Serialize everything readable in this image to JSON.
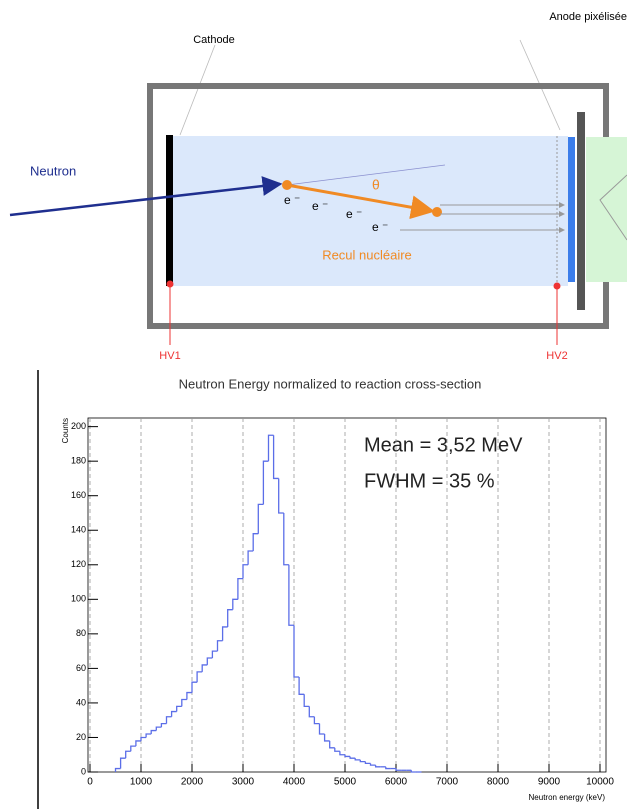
{
  "diagram": {
    "anode_label": "Anode pixélisée",
    "cathode_label": "Cathode",
    "neutron_label": "Neutron",
    "angle_label": "θ",
    "electron_labels": [
      "e ⁻",
      "e ⁻",
      "e ⁻",
      "e ⁻"
    ],
    "recoil_label": "Recul nucléaire",
    "hv1_label": "HV1",
    "hv2_label": "HV2"
  },
  "chart_data": {
    "type": "histogram",
    "title": "Neutron Energy normalized to reaction cross-section",
    "x_label": "Neutron energy (keV)",
    "y_label": "Counts",
    "annotations": [
      "Mean = 3,52 MeV",
      "FWHM = 35 %"
    ],
    "color": "#5b6ee8",
    "grid": true,
    "xlim": [
      0,
      10000
    ],
    "ylim": [
      0,
      205
    ],
    "xticks": [
      0,
      1000,
      2000,
      3000,
      4000,
      5000,
      6000,
      7000,
      8000,
      9000,
      10000
    ],
    "yticks": [
      0,
      20,
      40,
      60,
      80,
      100,
      120,
      140,
      160,
      180,
      200
    ],
    "bins": [
      500,
      600,
      700,
      800,
      900,
      1000,
      1100,
      1200,
      1300,
      1400,
      1500,
      1600,
      1700,
      1800,
      1900,
      2000,
      2100,
      2200,
      2300,
      2400,
      2500,
      2600,
      2700,
      2800,
      2900,
      3000,
      3100,
      3200,
      3300,
      3400,
      3500,
      3600,
      3700,
      3800,
      3900,
      4000,
      4100,
      4200,
      4300,
      4400,
      4500,
      4600,
      4700,
      4800,
      4900,
      5000,
      5100,
      5200,
      5300,
      5400,
      5500,
      5600,
      5700,
      5800,
      5900,
      6000,
      6100,
      6200,
      6300,
      6400,
      6500
    ],
    "values": [
      2,
      8,
      12,
      15,
      18,
      20,
      22,
      24,
      26,
      28,
      32,
      35,
      38,
      42,
      46,
      52,
      58,
      62,
      66,
      70,
      76,
      84,
      94,
      100,
      112,
      120,
      128,
      138,
      155,
      180,
      195,
      170,
      150,
      120,
      85,
      55,
      45,
      38,
      32,
      28,
      22,
      18,
      14,
      12,
      10,
      9,
      8,
      7,
      6,
      5,
      4,
      3,
      3,
      2,
      2,
      1,
      1,
      1,
      0,
      0
    ]
  }
}
